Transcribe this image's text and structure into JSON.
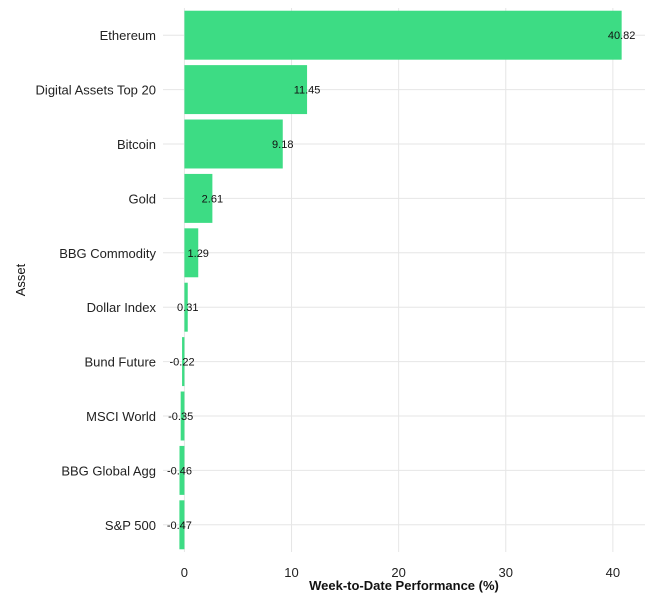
{
  "chart_data": {
    "type": "bar",
    "orientation": "horizontal",
    "title": "",
    "xlabel": "Week-to-Date Performance (%)",
    "ylabel": "Asset",
    "categories": [
      "Ethereum",
      "Digital Assets Top 20",
      "Bitcoin",
      "Gold",
      "BBG Commodity",
      "Dollar Index",
      "Bund Future",
      "MSCI World",
      "BBG Global Agg",
      "S&P 500"
    ],
    "values": [
      40.82,
      11.45,
      9.18,
      2.61,
      1.29,
      0.31,
      -0.22,
      -0.35,
      -0.46,
      -0.47
    ],
    "value_labels": [
      "40.82",
      "11.45",
      "9.18",
      "2.61",
      "1.29",
      "0.31",
      "-0.22",
      "-0.35",
      "-0.46",
      "-0.47"
    ],
    "xlim": [
      -2,
      43
    ],
    "xticks": [
      0,
      10,
      20,
      30,
      40
    ],
    "xtick_labels": [
      "0",
      "10",
      "20",
      "30",
      "40"
    ],
    "grid": true,
    "bar_color": "#3ddc84"
  }
}
